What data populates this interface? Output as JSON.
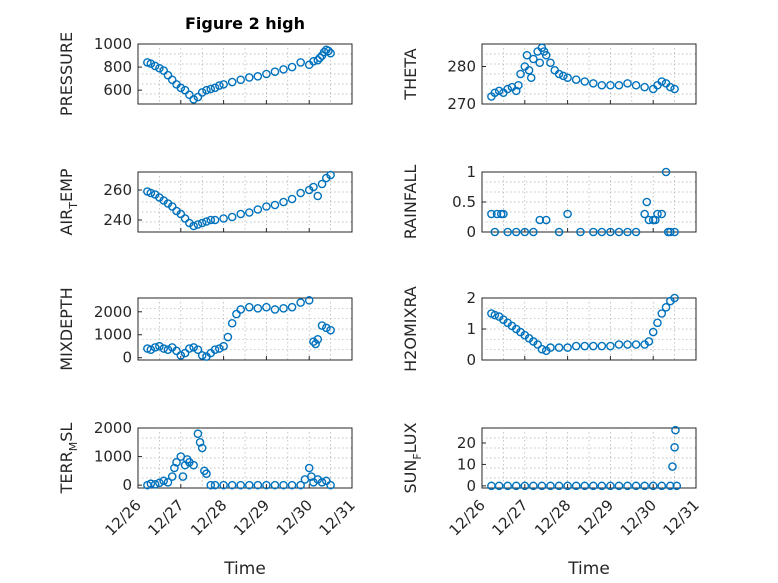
{
  "figure": {
    "title": "Figure 2 high",
    "marker_color": "#0072BD"
  },
  "chart_data": [
    {
      "type": "scatter",
      "ylabel": "PRESSURE",
      "xlim": [
        0,
        5
      ],
      "ylim": [
        480,
        1000
      ],
      "yticks": [
        600,
        800,
        1000
      ],
      "xticks": [
        "12/26",
        "12/27",
        "12/28",
        "12/29",
        "12/30",
        "12/31"
      ],
      "grid": true,
      "x": [
        0.22,
        0.3,
        0.4,
        0.5,
        0.6,
        0.7,
        0.8,
        0.9,
        1.0,
        1.1,
        1.2,
        1.3,
        1.4,
        1.5,
        1.6,
        1.7,
        1.8,
        1.9,
        2.0,
        2.2,
        2.4,
        2.6,
        2.8,
        3.0,
        3.2,
        3.4,
        3.6,
        3.8,
        4.0,
        4.1,
        4.2,
        4.25,
        4.3,
        4.35,
        4.4,
        4.45,
        4.5
      ],
      "y": [
        840,
        830,
        810,
        790,
        770,
        730,
        690,
        650,
        620,
        600,
        560,
        520,
        540,
        580,
        600,
        610,
        620,
        640,
        650,
        670,
        690,
        710,
        720,
        740,
        760,
        780,
        800,
        840,
        820,
        850,
        860,
        880,
        900,
        930,
        950,
        940,
        920
      ]
    },
    {
      "type": "scatter",
      "ylabel": "THETA",
      "xlim": [
        0,
        5
      ],
      "ylim": [
        270,
        286
      ],
      "yticks": [
        270,
        280
      ],
      "xticks": [
        "12/26",
        "12/27",
        "12/28",
        "12/29",
        "12/30",
        "12/31"
      ],
      "grid": true,
      "x": [
        0.22,
        0.3,
        0.4,
        0.5,
        0.6,
        0.7,
        0.8,
        0.85,
        0.9,
        1.0,
        1.05,
        1.1,
        1.15,
        1.2,
        1.3,
        1.35,
        1.4,
        1.45,
        1.5,
        1.6,
        1.7,
        1.8,
        1.9,
        2.0,
        2.2,
        2.4,
        2.6,
        2.8,
        3.0,
        3.2,
        3.4,
        3.6,
        3.8,
        4.0,
        4.1,
        4.2,
        4.3,
        4.4,
        4.5
      ],
      "y": [
        272,
        273,
        273.5,
        273,
        274,
        274.5,
        273.5,
        275,
        278,
        280,
        283,
        279,
        277,
        282,
        284,
        281,
        285,
        284,
        283,
        281,
        279,
        278,
        277.5,
        277,
        276.5,
        276,
        275.5,
        275,
        275,
        275,
        275.5,
        275,
        274.5,
        274,
        275,
        276,
        275.5,
        274.5,
        274
      ]
    },
    {
      "type": "scatter",
      "ylabel": "AIR_TEMP",
      "xlim": [
        0,
        5
      ],
      "ylim": [
        232,
        272
      ],
      "yticks": [
        240,
        260
      ],
      "xticks": [
        "12/26",
        "12/27",
        "12/28",
        "12/29",
        "12/30",
        "12/31"
      ],
      "grid": true,
      "x": [
        0.22,
        0.3,
        0.4,
        0.5,
        0.6,
        0.7,
        0.8,
        0.9,
        1.0,
        1.1,
        1.2,
        1.3,
        1.4,
        1.5,
        1.6,
        1.7,
        1.8,
        2.0,
        2.2,
        2.4,
        2.6,
        2.8,
        3.0,
        3.2,
        3.4,
        3.6,
        3.8,
        4.0,
        4.1,
        4.2,
        4.3,
        4.4,
        4.5
      ],
      "y": [
        259,
        258,
        257,
        255,
        253,
        251,
        249,
        246,
        244,
        241,
        238,
        236,
        237,
        238,
        239,
        240,
        240,
        241,
        242,
        244,
        245,
        247,
        249,
        250,
        252,
        254,
        258,
        260,
        262,
        256,
        264,
        268,
        270
      ]
    },
    {
      "type": "scatter",
      "ylabel": "RAINFALL",
      "xlim": [
        0,
        5
      ],
      "ylim": [
        0,
        1
      ],
      "yticks": [
        0,
        0.5,
        1
      ],
      "xticks": [
        "12/26",
        "12/27",
        "12/28",
        "12/29",
        "12/30",
        "12/31"
      ],
      "grid": true,
      "x": [
        0.22,
        0.3,
        0.35,
        0.45,
        0.5,
        0.6,
        0.8,
        1.0,
        1.2,
        1.35,
        1.5,
        1.8,
        2.0,
        2.3,
        2.6,
        2.8,
        3.0,
        3.2,
        3.4,
        3.6,
        3.8,
        3.85,
        3.9,
        4.0,
        4.05,
        4.1,
        4.2,
        4.3,
        4.35,
        4.4,
        4.5
      ],
      "y": [
        0.3,
        0,
        0.3,
        0.3,
        0.3,
        0,
        0,
        0,
        0,
        0.2,
        0.2,
        0,
        0.3,
        0,
        0,
        0,
        0,
        0,
        0,
        0,
        0.3,
        0.5,
        0.2,
        0.2,
        0.2,
        0.3,
        0.3,
        1.0,
        0,
        0,
        0
      ]
    },
    {
      "type": "scatter",
      "ylabel": "MIXDEPTH",
      "xlim": [
        0,
        5
      ],
      "ylim": [
        -100,
        2600
      ],
      "yticks": [
        0,
        1000,
        2000
      ],
      "xticks": [
        "12/26",
        "12/27",
        "12/28",
        "12/29",
        "12/30",
        "12/31"
      ],
      "grid": true,
      "x": [
        0.22,
        0.3,
        0.4,
        0.5,
        0.6,
        0.7,
        0.8,
        0.9,
        1.0,
        1.1,
        1.2,
        1.3,
        1.4,
        1.5,
        1.6,
        1.7,
        1.8,
        1.9,
        2.0,
        2.1,
        2.2,
        2.3,
        2.4,
        2.6,
        2.8,
        3.0,
        3.2,
        3.4,
        3.6,
        3.8,
        4.0,
        4.1,
        4.15,
        4.2,
        4.3,
        4.4,
        4.5
      ],
      "y": [
        400,
        350,
        450,
        500,
        400,
        350,
        450,
        300,
        100,
        200,
        400,
        450,
        350,
        100,
        50,
        200,
        350,
        400,
        500,
        900,
        1500,
        1900,
        2100,
        2200,
        2150,
        2200,
        2100,
        2150,
        2200,
        2400,
        2500,
        700,
        600,
        800,
        1400,
        1300,
        1200
      ]
    },
    {
      "type": "scatter",
      "ylabel": "H2OMIXRA",
      "xlim": [
        0,
        5
      ],
      "ylim": [
        0,
        2
      ],
      "yticks": [
        0,
        1,
        2
      ],
      "xticks": [
        "12/26",
        "12/27",
        "12/28",
        "12/29",
        "12/30",
        "12/31"
      ],
      "grid": true,
      "x": [
        0.22,
        0.3,
        0.4,
        0.5,
        0.6,
        0.7,
        0.8,
        0.9,
        1.0,
        1.1,
        1.2,
        1.3,
        1.4,
        1.5,
        1.6,
        1.8,
        2.0,
        2.2,
        2.4,
        2.6,
        2.8,
        3.0,
        3.2,
        3.4,
        3.6,
        3.8,
        3.9,
        4.0,
        4.1,
        4.2,
        4.3,
        4.4,
        4.5
      ],
      "y": [
        1.5,
        1.45,
        1.4,
        1.3,
        1.2,
        1.1,
        1.0,
        0.9,
        0.8,
        0.7,
        0.6,
        0.5,
        0.35,
        0.3,
        0.4,
        0.4,
        0.4,
        0.45,
        0.45,
        0.45,
        0.45,
        0.45,
        0.5,
        0.5,
        0.5,
        0.5,
        0.6,
        0.9,
        1.2,
        1.5,
        1.7,
        1.9,
        2.0
      ]
    },
    {
      "type": "scatter",
      "ylabel": "TERR_MSL",
      "xlim": [
        0,
        5
      ],
      "ylim": [
        -100,
        2000
      ],
      "yticks": [
        0,
        1000,
        2000
      ],
      "xticks": [
        "12/26",
        "12/27",
        "12/28",
        "12/29",
        "12/30",
        "12/31"
      ],
      "grid": true,
      "x": [
        0.22,
        0.3,
        0.4,
        0.5,
        0.6,
        0.7,
        0.8,
        0.85,
        0.9,
        1.0,
        1.05,
        1.1,
        1.15,
        1.2,
        1.3,
        1.4,
        1.45,
        1.5,
        1.55,
        1.6,
        1.7,
        1.8,
        2.0,
        2.2,
        2.4,
        2.6,
        2.8,
        3.0,
        3.2,
        3.4,
        3.6,
        3.8,
        3.9,
        4.0,
        4.05,
        4.1,
        4.2,
        4.3,
        4.4,
        4.5
      ],
      "y": [
        0,
        50,
        30,
        80,
        150,
        100,
        300,
        600,
        800,
        1000,
        300,
        700,
        900,
        800,
        700,
        1800,
        1500,
        1300,
        500,
        400,
        0,
        0,
        0,
        0,
        0,
        0,
        0,
        0,
        0,
        0,
        0,
        0,
        200,
        600,
        300,
        100,
        200,
        100,
        150,
        0
      ]
    },
    {
      "type": "scatter",
      "ylabel": "SUN_FLUX",
      "xlim": [
        0,
        5
      ],
      "ylim": [
        -1,
        27
      ],
      "yticks": [
        0,
        10,
        20
      ],
      "xticks": [
        "12/26",
        "12/27",
        "12/28",
        "12/29",
        "12/30",
        "12/31"
      ],
      "grid": true,
      "x": [
        0.22,
        0.4,
        0.6,
        0.8,
        1.0,
        1.2,
        1.4,
        1.6,
        1.8,
        2.0,
        2.2,
        2.4,
        2.6,
        2.8,
        3.0,
        3.2,
        3.4,
        3.6,
        3.8,
        4.0,
        4.2,
        4.4,
        4.45,
        4.5,
        4.52,
        4.55
      ],
      "y": [
        0,
        0,
        0,
        0,
        0,
        0,
        0,
        0,
        0,
        0,
        0,
        0,
        0,
        0,
        0,
        0,
        0,
        0,
        0,
        0,
        0,
        0,
        9,
        18,
        26,
        0
      ]
    }
  ],
  "xlabel": "Time"
}
